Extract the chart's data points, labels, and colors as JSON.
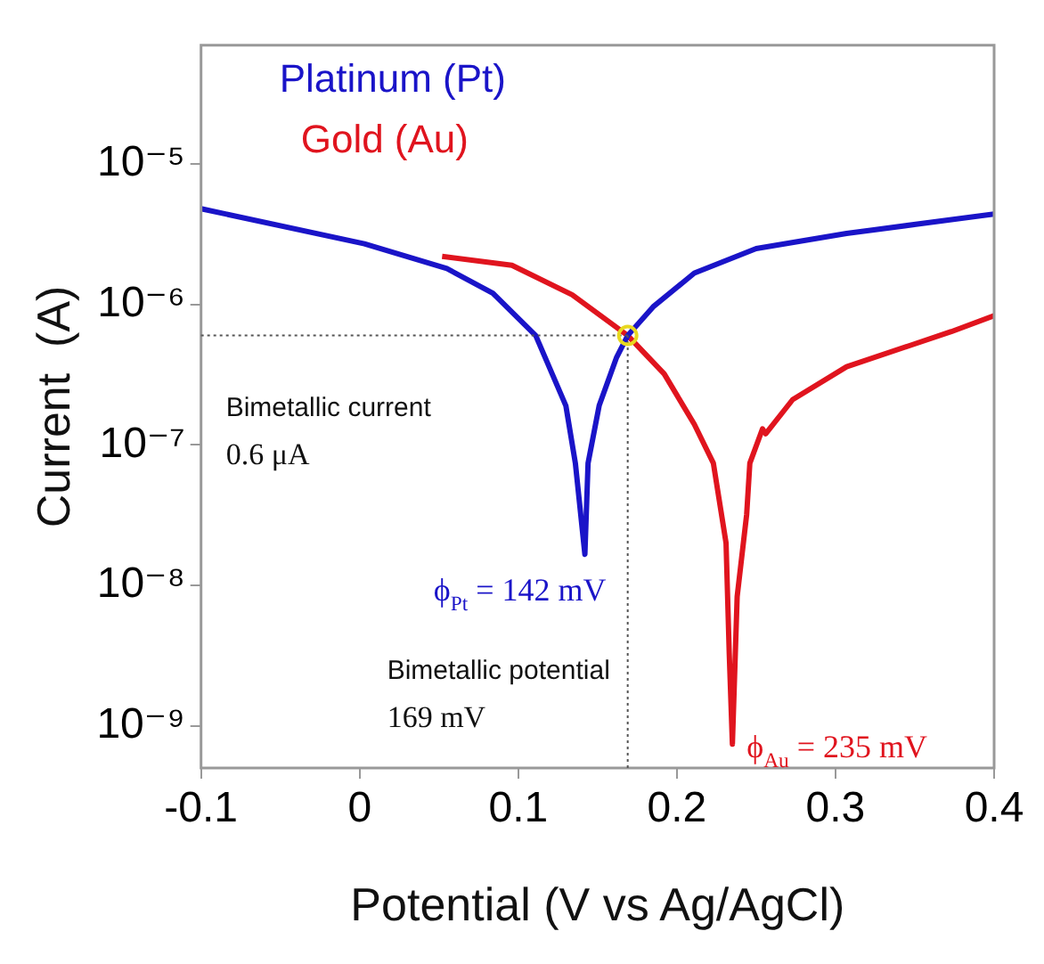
{
  "chart_data": {
    "type": "line",
    "xlabel": "Potential (V vs Ag/AgCl)",
    "ylabel": "Current  (A)",
    "log": "y",
    "grid": false,
    "legend": "top left",
    "marker": "none",
    "line_style": "solid",
    "xlim": [
      -0.1,
      0.4
    ],
    "xticks": [
      -0.1,
      0,
      0.1,
      0.2,
      0.3,
      0.4
    ],
    "ylim": [
      5e-10,
      7e-05
    ],
    "yticks": [
      {
        "value": 1e-09,
        "label": "10⁻⁹"
      },
      {
        "value": 1e-08,
        "label": "10⁻⁸"
      },
      {
        "value": 1e-07,
        "label": "10⁻⁷"
      },
      {
        "value": 1e-06,
        "label": "10⁻⁶"
      },
      {
        "value": 1e-05,
        "label": "10⁻⁵"
      }
    ],
    "series": [
      {
        "name": "Platinum (Pt)",
        "color": "#1a14c8",
        "x": [
          -0.1,
          0.003,
          0.055,
          0.084,
          0.111,
          0.13,
          0.136,
          0.142,
          0.144,
          0.151,
          0.162,
          0.169,
          0.185,
          0.211,
          0.25,
          0.307,
          0.4
        ],
        "values": [
          4.8e-06,
          2.7e-06,
          1.8e-06,
          1.2e-06,
          6e-07,
          1.9e-07,
          7.4e-08,
          1.66e-08,
          7.4e-08,
          1.9e-07,
          4.2e-07,
          6e-07,
          9.6e-07,
          1.67e-06,
          2.5e-06,
          3.2e-06,
          4.4e-06
        ]
      },
      {
        "name": "Gold (Au)",
        "color": "#e0141e",
        "x": [
          0.052,
          0.096,
          0.134,
          0.169,
          0.192,
          0.211,
          0.223,
          0.231,
          0.233,
          0.235,
          0.238,
          0.244,
          0.246,
          0.254,
          0.256,
          0.273,
          0.307,
          0.347,
          0.373,
          0.4
        ],
        "values": [
          2.2e-06,
          1.9e-06,
          1.17e-06,
          6e-07,
          3.2e-07,
          1.4e-07,
          7.4e-08,
          2e-08,
          3.3e-09,
          7.4e-10,
          8.3e-09,
          3.2e-08,
          7.4e-08,
          1.3e-07,
          1.2e-07,
          2.1e-07,
          3.6e-07,
          5.1e-07,
          6.4e-07,
          8.3e-07
        ]
      }
    ],
    "ref_lines": [
      {
        "axis": "y",
        "value": 6e-07,
        "label": "Bimetallic current\n0.6 μA",
        "color": "#555555",
        "line_style": "dotted"
      },
      {
        "axis": "x",
        "value": 0.169,
        "label": "Bimetallic potential\n169 mV",
        "color": "#555555",
        "line_style": "dotted"
      }
    ],
    "annotations": [
      {
        "text": "ϕ$_{Pt}$ = 142 mV",
        "x": 0.142,
        "y": 1.66e-08
      },
      {
        "text": "ϕ$_{Au}$ = 235 mV",
        "x": 0.235,
        "y": 7.4e-10
      }
    ]
  }
}
